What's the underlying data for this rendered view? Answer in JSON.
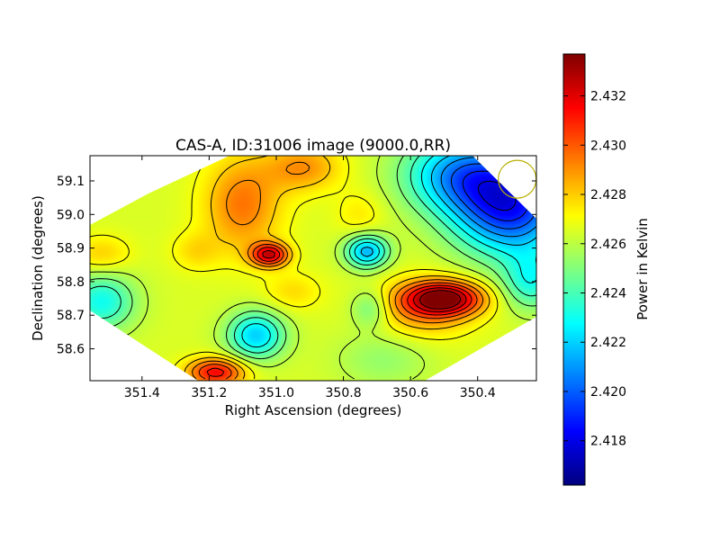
{
  "chart_data": {
    "type": "heatmap",
    "title": "CAS-A, ID:31006 image (9000.0,RR)",
    "xlabel": "Right Ascension (degrees)",
    "ylabel": "Declination (degrees)",
    "xlim": [
      351.555,
      350.225
    ],
    "ylim": [
      58.505,
      59.175
    ],
    "x_ticks": [
      351.4,
      351.2,
      351.0,
      350.8,
      350.6,
      350.4
    ],
    "x_tick_labels": [
      "351.4",
      "351.2",
      "351.0",
      "350.8",
      "350.6",
      "350.4"
    ],
    "y_ticks": [
      58.6,
      58.7,
      58.8,
      58.9,
      59.0,
      59.1
    ],
    "y_tick_labels": [
      "58.6",
      "58.7",
      "58.8",
      "58.9",
      "59.0",
      "59.1"
    ],
    "colorbar": {
      "label": "Power in Kelvin",
      "range": [
        2.4162,
        2.4337
      ],
      "ticks": [
        2.418,
        2.42,
        2.422,
        2.424,
        2.426,
        2.428,
        2.43,
        2.432
      ],
      "tick_labels": [
        "2.418",
        "2.420",
        "2.422",
        "2.424",
        "2.426",
        "2.428",
        "2.430",
        "2.432"
      ],
      "colormap": "jet"
    },
    "beam": {
      "ra": 350.282,
      "dec": 59.105,
      "color": "#b8b000"
    },
    "baseline": 2.4265,
    "features": [
      {
        "ra": 350.5,
        "dec": 58.75,
        "amp": 0.0065,
        "sra": 0.08,
        "sdec": 0.035
      },
      {
        "ra": 350.56,
        "dec": 58.72,
        "amp": 0.0025,
        "sra": 0.1,
        "sdec": 0.06
      },
      {
        "ra": 350.3,
        "dec": 59.02,
        "amp": -0.0075,
        "sra": 0.12,
        "sdec": 0.1
      },
      {
        "ra": 350.45,
        "dec": 59.12,
        "amp": -0.005,
        "sra": 0.12,
        "sdec": 0.08
      },
      {
        "ra": 350.24,
        "dec": 58.8,
        "amp": -0.003,
        "sra": 0.06,
        "sdec": 0.06
      },
      {
        "ra": 351.02,
        "dec": 58.88,
        "amp": 0.0055,
        "sra": 0.04,
        "sdec": 0.025
      },
      {
        "ra": 351.1,
        "dec": 59.03,
        "amp": 0.003,
        "sra": 0.08,
        "sdec": 0.1
      },
      {
        "ra": 350.92,
        "dec": 59.14,
        "amp": 0.0025,
        "sra": 0.08,
        "sdec": 0.05
      },
      {
        "ra": 351.18,
        "dec": 58.53,
        "amp": 0.005,
        "sra": 0.06,
        "sdec": 0.03
      },
      {
        "ra": 351.06,
        "dec": 58.64,
        "amp": -0.0045,
        "sra": 0.06,
        "sdec": 0.05
      },
      {
        "ra": 350.73,
        "dec": 58.89,
        "amp": -0.005,
        "sra": 0.045,
        "sdec": 0.035
      },
      {
        "ra": 351.52,
        "dec": 58.74,
        "amp": -0.0035,
        "sra": 0.07,
        "sdec": 0.06
      },
      {
        "ra": 351.52,
        "dec": 58.88,
        "amp": 0.0015,
        "sra": 0.06,
        "sdec": 0.04
      },
      {
        "ra": 350.72,
        "dec": 58.72,
        "amp": -0.002,
        "sra": 0.04,
        "sdec": 0.04
      },
      {
        "ra": 350.68,
        "dec": 58.57,
        "amp": -0.0012,
        "sra": 0.1,
        "sdec": 0.06
      },
      {
        "ra": 351.24,
        "dec": 58.89,
        "amp": 0.0012,
        "sra": 0.05,
        "sdec": 0.04
      },
      {
        "ra": 350.75,
        "dec": 59.0,
        "amp": 0.001,
        "sra": 0.05,
        "sdec": 0.05
      },
      {
        "ra": 350.95,
        "dec": 58.77,
        "amp": 0.0012,
        "sra": 0.06,
        "sdec": 0.04
      }
    ],
    "contour_levels": [
      2.418,
      2.419,
      2.42,
      2.421,
      2.422,
      2.423,
      2.424,
      2.425,
      2.426,
      2.427,
      2.428,
      2.429,
      2.43,
      2.431,
      2.432,
      2.433
    ]
  }
}
